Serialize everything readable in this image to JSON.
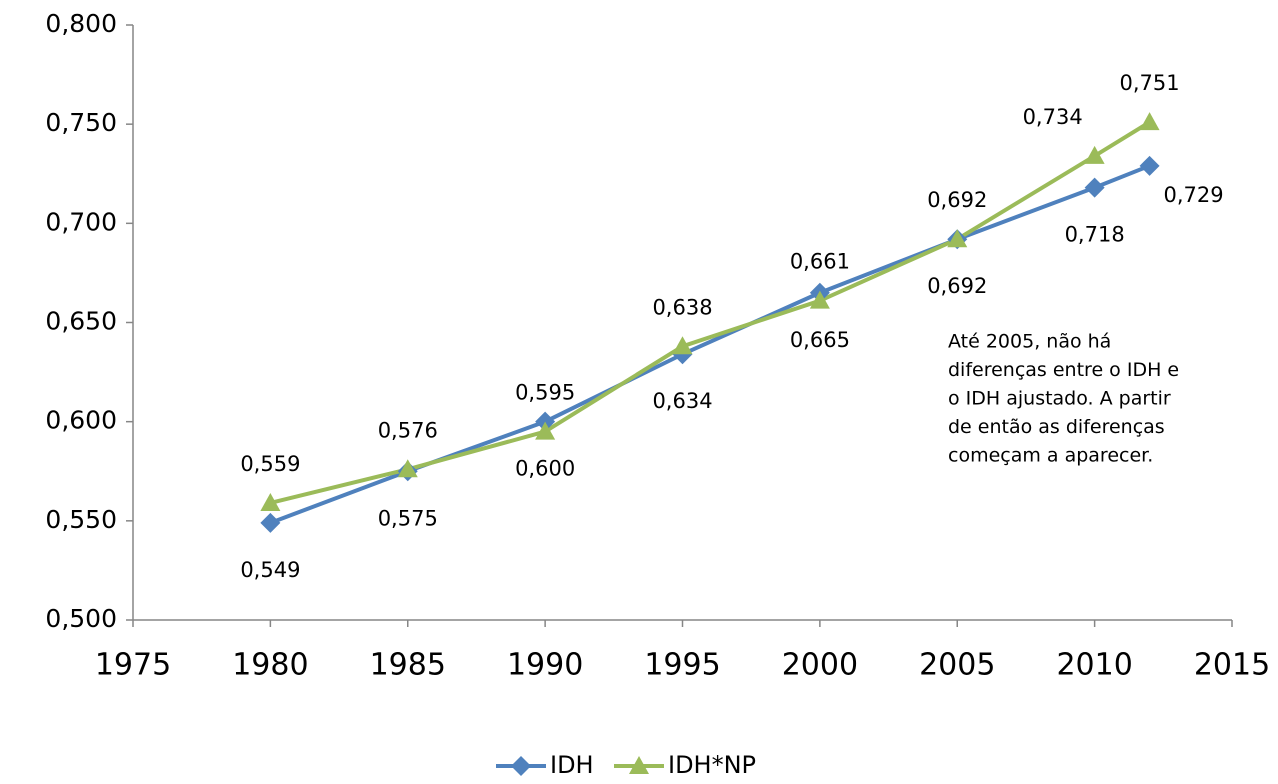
{
  "chart_data": {
    "type": "line",
    "x": [
      1980,
      1985,
      1990,
      1995,
      2000,
      2005,
      2010,
      2012
    ],
    "series": [
      {
        "name": "IDH",
        "color": "#4f81bd",
        "marker": "diamond",
        "values": [
          0.549,
          0.575,
          0.6,
          0.634,
          0.665,
          0.692,
          0.718,
          0.729
        ],
        "value_labels": [
          "0,549",
          "0,575",
          "0,600",
          "0,634",
          "0,665",
          "0,692",
          "0,718",
          "0,729"
        ]
      },
      {
        "name": "IDH*NP",
        "color": "#9bbb59",
        "marker": "triangle",
        "values": [
          0.559,
          0.576,
          0.595,
          0.638,
          0.661,
          0.692,
          0.734,
          0.751
        ],
        "value_labels": [
          "0,559",
          "0,576",
          "0,595",
          "0,638",
          "0,661",
          "0,692",
          "0,734",
          "0,751"
        ]
      }
    ],
    "xlim": [
      1975,
      2015
    ],
    "xticks": [
      1975,
      1980,
      1985,
      1990,
      1995,
      2000,
      2005,
      2010,
      2015
    ],
    "ylim": [
      0.5,
      0.8
    ],
    "yticks": [
      {
        "value": 0.5,
        "label": "0,500"
      },
      {
        "value": 0.55,
        "label": "0,550"
      },
      {
        "value": 0.6,
        "label": "0,600"
      },
      {
        "value": 0.65,
        "label": "0,650"
      },
      {
        "value": 0.7,
        "label": "0,700"
      },
      {
        "value": 0.75,
        "label": "0,750"
      },
      {
        "value": 0.8,
        "label": "0,800"
      }
    ],
    "annotation": [
      "Até 2005, não há",
      "diferenças entre o IDH e",
      "o IDH ajustado. A partir",
      "de então as diferenças",
      "começam a aparecer."
    ],
    "legend": "bottom"
  }
}
